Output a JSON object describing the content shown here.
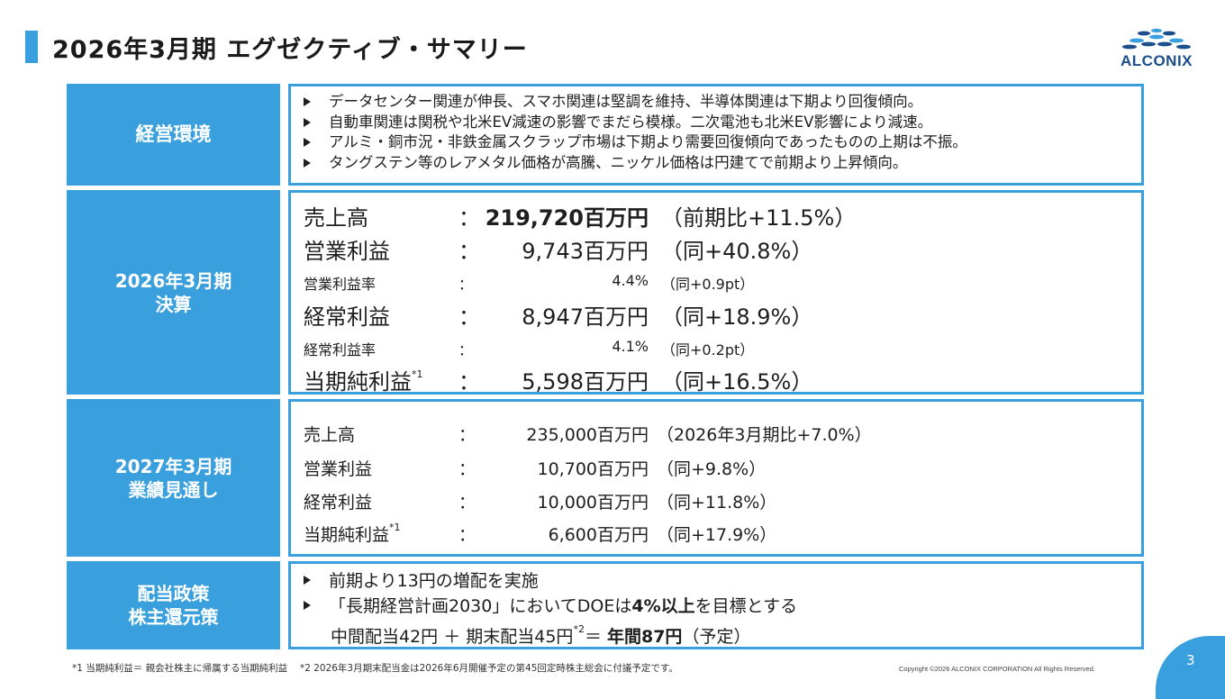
{
  "header": {
    "title": "2026年3月期 エグゼクティブ・サマリー",
    "logo_text": "ALCONIX"
  },
  "env": {
    "label": "経営環境",
    "bullets": [
      "データセンター関連が伸長、スマホ関連は堅調を維持、半導体関連は下期より回復傾向。",
      "自動車関連は関税や北米EV減速の影響でまだら模様。二次電池も北米EV影響により減速。",
      "アルミ・銅市況・非鉄金属スクラップ市場は下期より需要回復傾向であったものの上期は不振。",
      "タングステン等のレアメタル価格が高騰、ニッケル価格は円建てで前期より上昇傾向。"
    ]
  },
  "results": {
    "label_line1": "2026年3月期",
    "label_line2": "決算",
    "rows": [
      {
        "label": "売上高",
        "sup": "",
        "colon": "：",
        "value": "219,720百万円",
        "compare": "（前期比+11.5%）"
      },
      {
        "label": "営業利益",
        "sup": "",
        "colon": "：",
        "value": "9,743百万円",
        "compare": "（同+40.8%）"
      },
      {
        "label": "営業利益率",
        "sup": "",
        "colon": "：",
        "value": "4.4%",
        "compare": "（同+0.9pt）"
      },
      {
        "label": "経常利益",
        "sup": "",
        "colon": "：",
        "value": "8,947百万円",
        "compare": "（同+18.9%）"
      },
      {
        "label": "経常利益率",
        "sup": "",
        "colon": "：",
        "value": "4.1%",
        "compare": "（同+0.2pt）"
      },
      {
        "label": "当期純利益",
        "sup": "*1",
        "colon": "：",
        "value": "5,598百万円",
        "compare": "（同+16.5%）"
      }
    ]
  },
  "forecast": {
    "label_line1": "2027年3月期",
    "label_line2": "業績見通し",
    "rows": [
      {
        "label": "売上高",
        "sup": "",
        "colon": "：",
        "value": "235,000百万円",
        "compare": "（2026年3月期比+7.0%）"
      },
      {
        "label": "営業利益",
        "sup": "",
        "colon": "：",
        "value": "10,700百万円",
        "compare": "（同+9.8%）"
      },
      {
        "label": "経常利益",
        "sup": "",
        "colon": "：",
        "value": "10,000百万円",
        "compare": "（同+11.8%）"
      },
      {
        "label": "当期純利益",
        "sup": "*1",
        "colon": "：",
        "value": "6,600百万円",
        "compare": "（同+17.9%）"
      }
    ]
  },
  "dividend": {
    "label_line1": "配当政策",
    "label_line2": "株主還元策",
    "bullet1": "前期より13円の増配を実施",
    "bullet2_pre": "「長期経営計画2030」においてDOEは",
    "bullet2_bold": "4%以上",
    "bullet2_post": "を目標とする",
    "line3_pre": "中間配当42円 ＋ 期末配当45円",
    "line3_sup": "*2",
    "line3_mid": "＝ ",
    "line3_bold": "年間87円",
    "line3_post": "（予定）"
  },
  "footer": {
    "footnote": "*1 当期純利益＝ 親会社株主に帰属する当期純利益　 *2 2026年3月期末配当金は2026年6月開催予定の第45回定時株主総会に付議予定です。",
    "copyright": "Copyright ©2026 ALCONIX CORPORATION All Rights Reserved.",
    "page_number": "3"
  },
  "colors": {
    "accent": "#3aa0dd",
    "logo": "#1a4e8c"
  }
}
